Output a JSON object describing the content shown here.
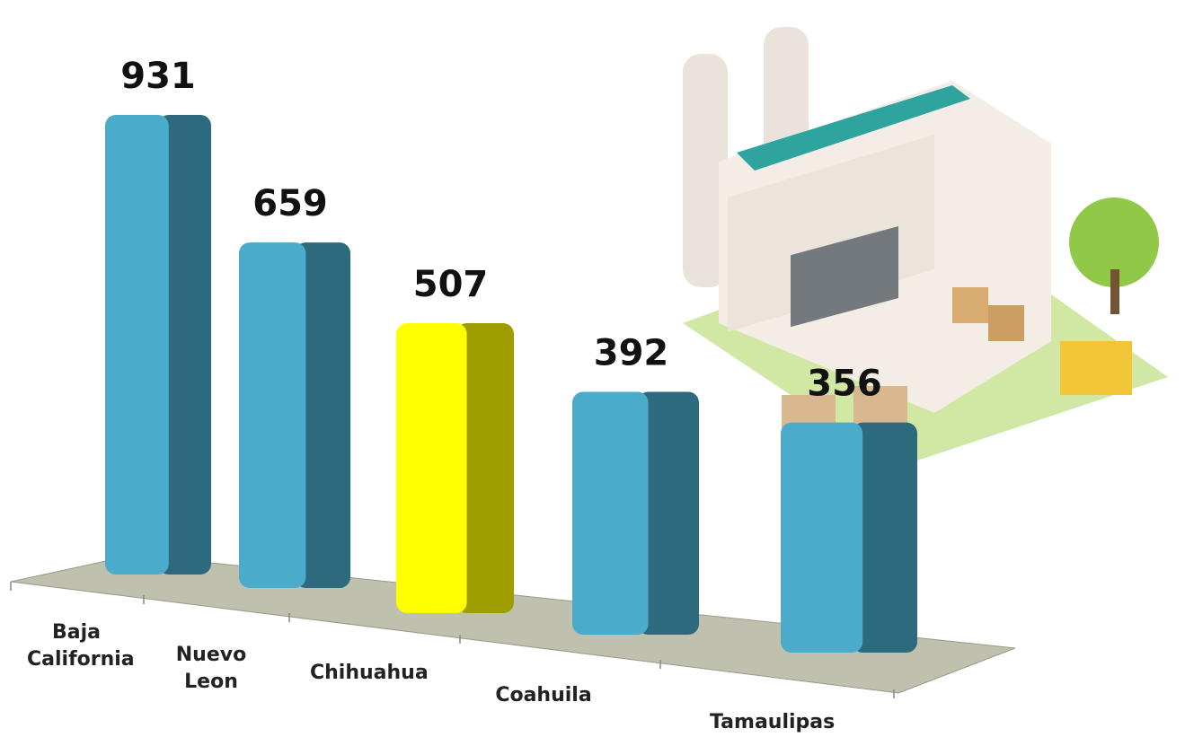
{
  "chart_data": {
    "type": "bar3d",
    "categories": [
      "Baja California",
      "Nuevo Leon",
      "Chihuahua",
      "Coahuila",
      "Tamaulipas"
    ],
    "values": [
      931,
      659,
      507,
      392,
      356
    ],
    "colors": [
      "#4aabcb",
      "#4aabcb",
      "#ffff00",
      "#4aabcb",
      "#4aabcb"
    ]
  }
}
